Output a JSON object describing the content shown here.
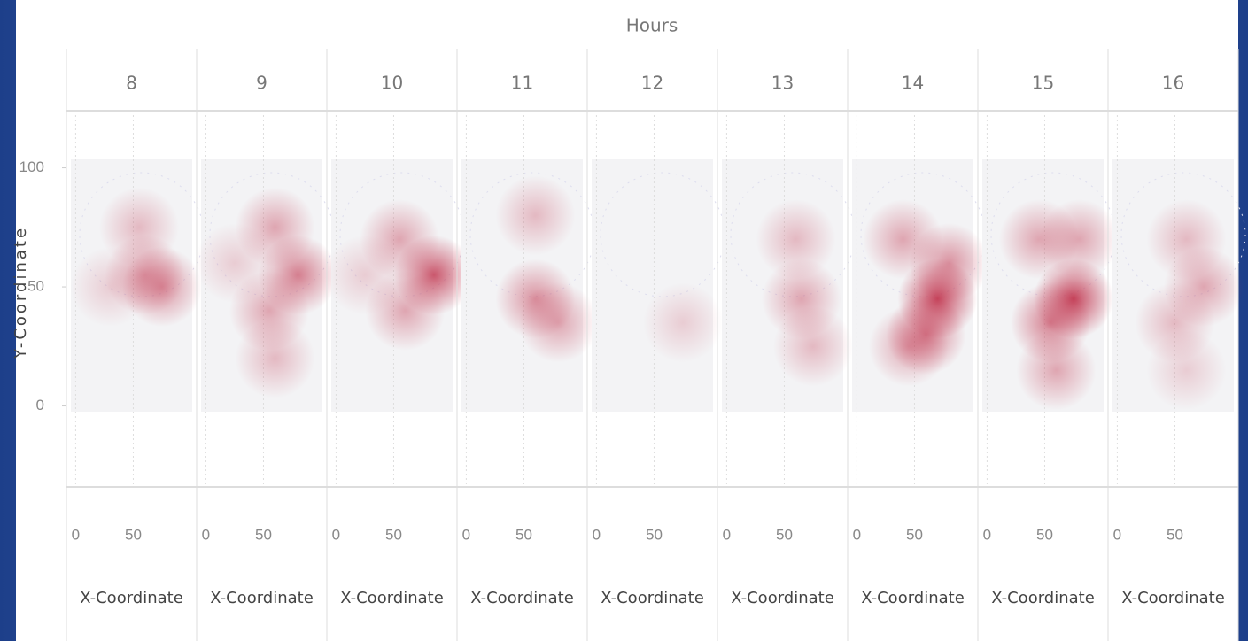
{
  "chart_data": {
    "type": "density",
    "title": "Hours",
    "x_label": "X-Coordinate",
    "y_label": "Y-Coordinate",
    "xlim": [
      -8,
      105
    ],
    "ylim": [
      -34,
      124
    ],
    "xticks": [
      0,
      50
    ],
    "yticks": [
      0,
      50,
      100
    ],
    "color": "#c0304a",
    "panels": [
      {
        "label": "8",
        "x": [
          55,
          75,
          60,
          30
        ],
        "y": [
          75,
          50,
          55,
          50
        ],
        "intensity": [
          0.3,
          0.5,
          0.4,
          0.2
        ]
      },
      {
        "label": "9",
        "x": [
          60,
          80,
          55,
          60,
          25
        ],
        "y": [
          75,
          55,
          40,
          20,
          60
        ],
        "intensity": [
          0.4,
          0.6,
          0.4,
          0.3,
          0.2
        ]
      },
      {
        "label": "10",
        "x": [
          55,
          85,
          60,
          25
        ],
        "y": [
          70,
          55,
          40,
          55
        ],
        "intensity": [
          0.4,
          0.8,
          0.4,
          0.2
        ]
      },
      {
        "label": "11",
        "x": [
          60,
          60,
          80
        ],
        "y": [
          80,
          45,
          35
        ],
        "intensity": [
          0.3,
          0.5,
          0.4
        ]
      },
      {
        "label": "12",
        "x": [
          75
        ],
        "y": [
          35
        ],
        "intensity": [
          0.2
        ]
      },
      {
        "label": "13",
        "x": [
          60,
          65,
          75
        ],
        "y": [
          70,
          45,
          25
        ],
        "intensity": [
          0.3,
          0.4,
          0.3
        ]
      },
      {
        "label": "14",
        "x": [
          40,
          70,
          60,
          45,
          80
        ],
        "y": [
          70,
          45,
          30,
          25,
          60
        ],
        "intensity": [
          0.4,
          0.9,
          0.6,
          0.4,
          0.5
        ]
      },
      {
        "label": "15",
        "x": [
          45,
          75,
          55,
          60,
          80
        ],
        "y": [
          70,
          45,
          35,
          15,
          70
        ],
        "intensity": [
          0.4,
          0.9,
          0.6,
          0.4,
          0.4
        ]
      },
      {
        "label": "16",
        "x": [
          60,
          75,
          50,
          60
        ],
        "y": [
          70,
          50,
          35,
          15
        ],
        "intensity": [
          0.3,
          0.4,
          0.3,
          0.2
        ]
      }
    ]
  }
}
